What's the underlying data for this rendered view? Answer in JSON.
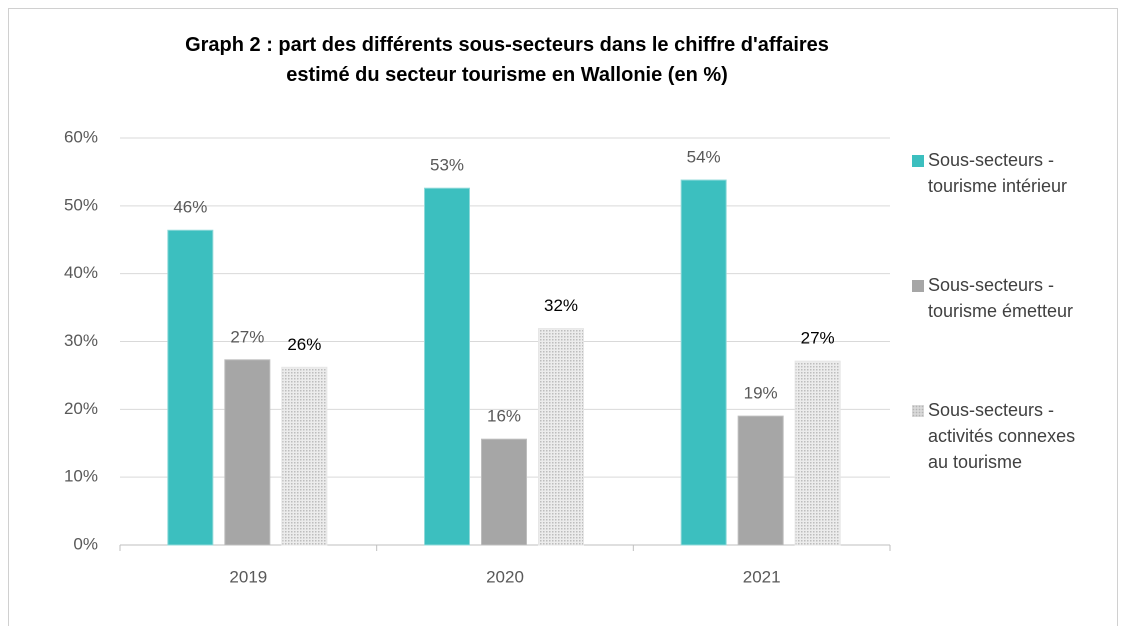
{
  "chart_data": {
    "type": "bar",
    "title": "Graph 2 : part des différents sous-secteurs dans le chiffre d'affaires estimé du secteur tourisme en Wallonie (en %)",
    "categories": [
      "2019",
      "2020",
      "2021"
    ],
    "series": [
      {
        "name": "Sous-secteurs - tourisme intérieur",
        "color": "#3cbfbf",
        "values": [
          46.4,
          52.6,
          53.8
        ],
        "value_labels": [
          "46%",
          "53%",
          "54%"
        ]
      },
      {
        "name": "Sous-secteurs - tourisme émetteur",
        "color": "#a6a6a6",
        "values": [
          27.3,
          15.6,
          19.0
        ],
        "value_labels": [
          "27%",
          "16%",
          "19%"
        ]
      },
      {
        "name": "Sous-secteurs - activités connexes au tourisme",
        "color": "#d9d9d9",
        "values": [
          26.2,
          31.9,
          27.1
        ],
        "value_labels": [
          "26%",
          "32%",
          "27%"
        ]
      }
    ],
    "ylim": [
      0,
      60
    ],
    "yticks": [
      {
        "value": 0,
        "label": "0%"
      },
      {
        "value": 10,
        "label": "10%"
      },
      {
        "value": 20,
        "label": "20%"
      },
      {
        "value": 30,
        "label": "30%"
      },
      {
        "value": 40,
        "label": "40%"
      },
      {
        "value": 50,
        "label": "50%"
      },
      {
        "value": 60,
        "label": "60%"
      }
    ],
    "grid": true,
    "legend": "right"
  }
}
